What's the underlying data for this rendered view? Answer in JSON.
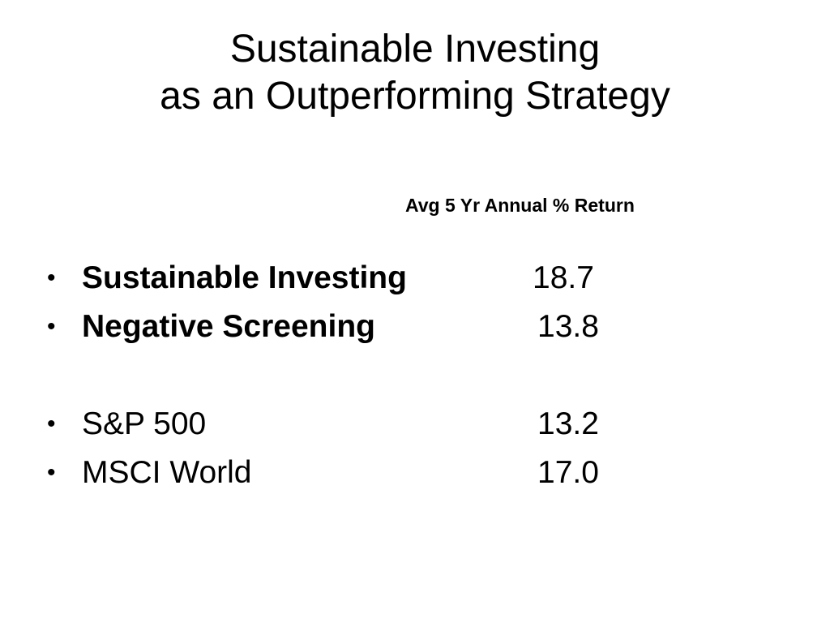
{
  "title": {
    "line1": "Sustainable Investing",
    "line2": "as an Outperforming Strategy"
  },
  "column_header": "Avg 5 Yr Annual % Return",
  "rows": [
    {
      "bullet": "•",
      "label": "Sustainable Investing",
      "value": "18.7",
      "bold": true
    },
    {
      "bullet": "•",
      "label": "Negative Screening",
      "value": "13.8",
      "bold": true
    },
    {
      "bullet": "•",
      "label": "S&P 500",
      "value": "13.2",
      "bold": false
    },
    {
      "bullet": "•",
      "label": "MSCI World",
      "value": "17.0",
      "bold": false
    }
  ]
}
